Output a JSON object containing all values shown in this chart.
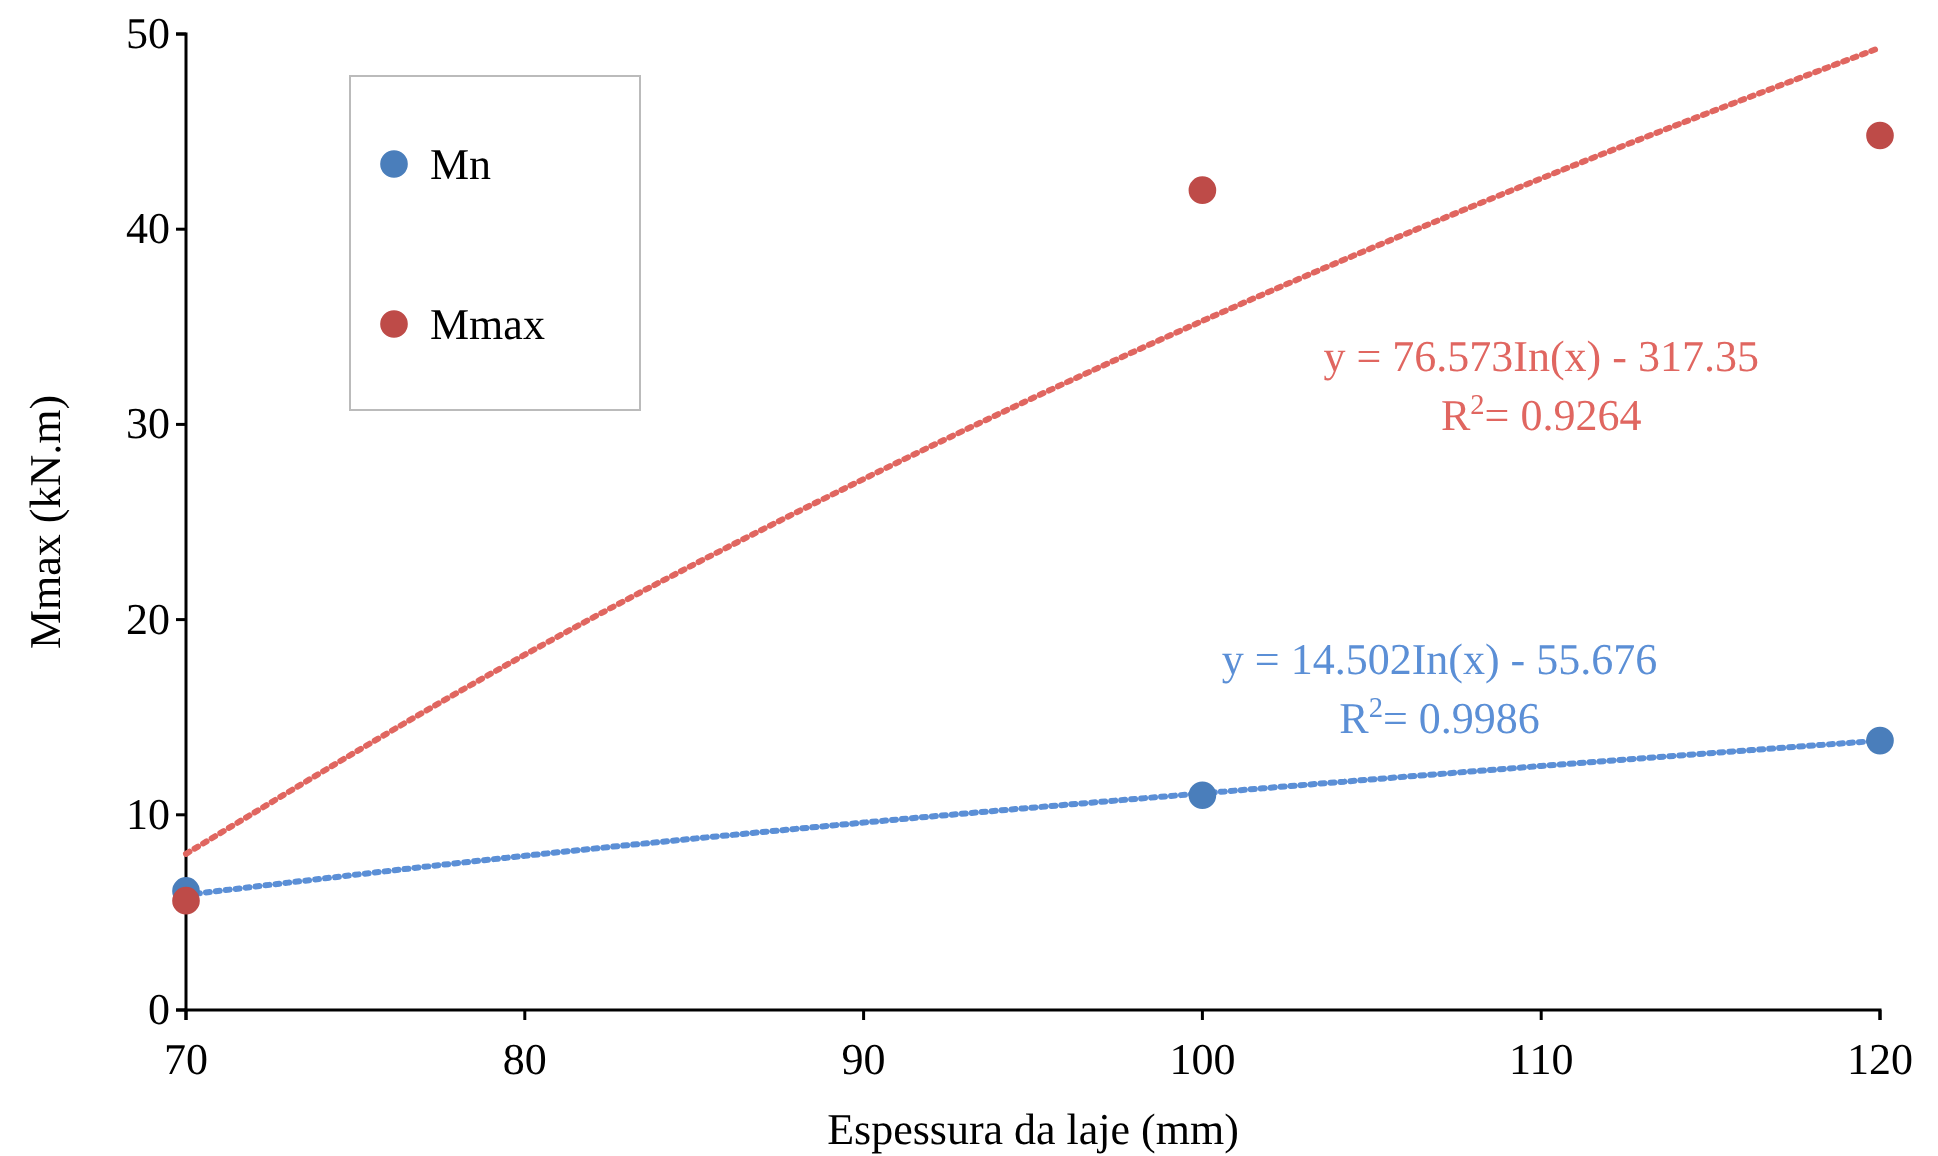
{
  "chart_data": {
    "type": "scatter",
    "xlabel": "Espessura da laje (mm)",
    "ylabel": "Mmax (kN.m)",
    "xlim": [
      70,
      120
    ],
    "xticks": [
      70,
      80,
      90,
      100,
      110,
      120
    ],
    "ylim": [
      0,
      50
    ],
    "yticks": [
      0,
      10,
      20,
      30,
      40,
      50
    ],
    "grid": false,
    "legend": "top left",
    "marker": "circle",
    "series": [
      {
        "name": "Mn",
        "color": "#4a7ebb",
        "x": [
          70,
          100,
          120
        ],
        "values": [
          6.1,
          11.0,
          13.8
        ]
      },
      {
        "name": "Mmax",
        "color": "#be4b48",
        "x": [
          70,
          100,
          120
        ],
        "values": [
          5.6,
          42.0,
          44.8
        ]
      },
      {
        "type": "line",
        "marker": "none",
        "color": "#5b8fd6",
        "line_style": "dotted",
        "x": [
          70,
          80,
          90,
          100,
          110,
          120
        ],
        "values": [
          5.9,
          7.9,
          9.6,
          11.1,
          12.5,
          13.8
        ]
      },
      {
        "type": "line",
        "marker": "none",
        "color": "#e06660",
        "line_style": "dotted",
        "x": [
          70,
          80,
          90,
          100,
          110,
          120
        ],
        "values": [
          8.0,
          18.2,
          27.2,
          35.3,
          42.6,
          49.3
        ]
      }
    ],
    "annotations": [
      "y = 76.573In(x) - 317.35",
      "R$^{2}$= 0.9264",
      "y = 14.502In(x) - 55.676",
      "R$^{2}$= 0.9986"
    ]
  }
}
